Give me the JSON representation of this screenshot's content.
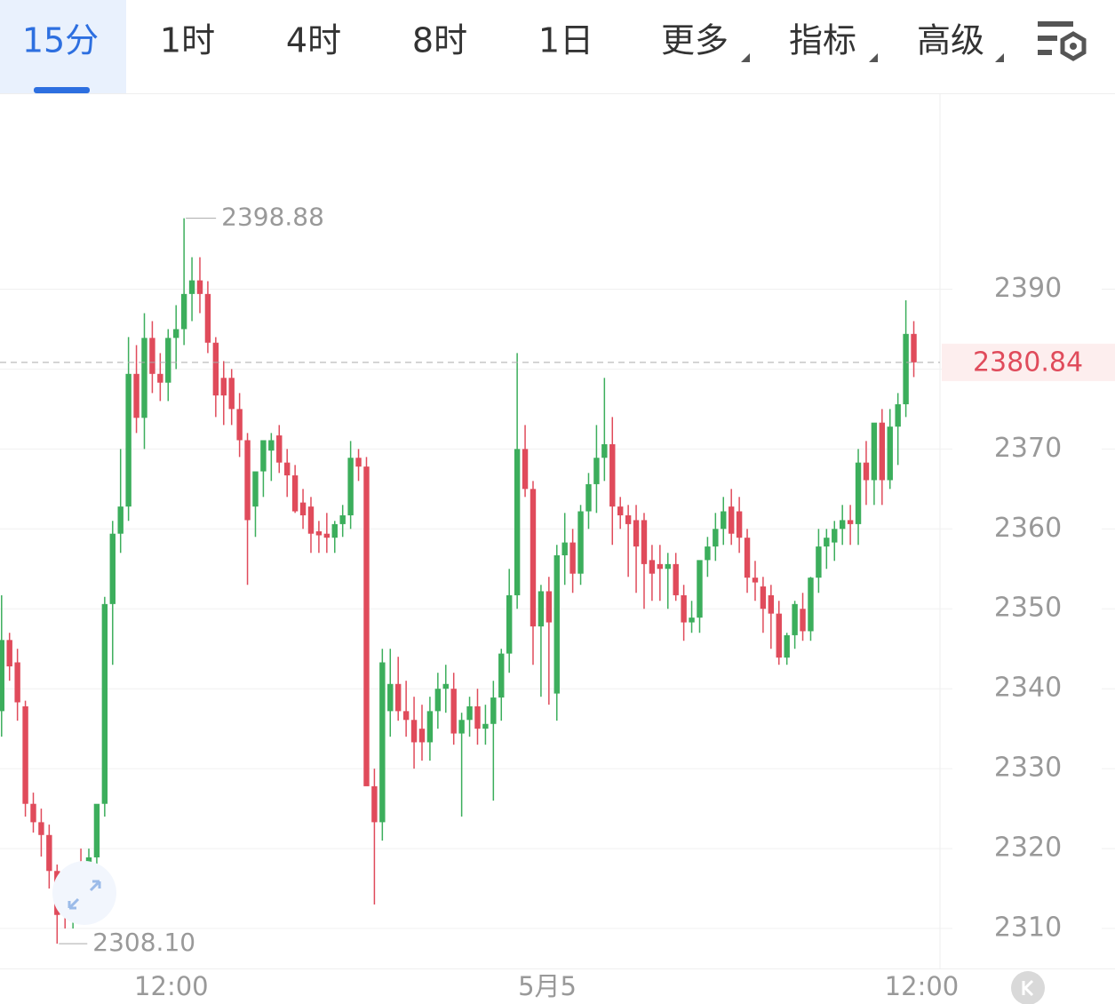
{
  "tabs": [
    "15分",
    "1时",
    "4时",
    "8时",
    "1日",
    "更多",
    "指标",
    "高级"
  ],
  "chart_data": {
    "type": "candlestick",
    "up_color": "#3cae5c",
    "down_color": "#e04b5b",
    "ylim": [
      2305,
      2414.4
    ],
    "yticks": [
      2310,
      2320,
      2330,
      2340,
      2350,
      2360,
      2370,
      2380,
      2390
    ],
    "xlim": [
      -0.2,
      118.3
    ],
    "xticks": [
      {
        "value": 21.4,
        "label": "12:00"
      },
      {
        "value": 68.8,
        "label": "5月5"
      },
      {
        "value": 116,
        "label": "12:00"
      }
    ],
    "grid": true,
    "last_price": 2380.84,
    "high_label": 2398.88,
    "low_label": {
      "value": 2308.1,
      "label": "2308.10"
    },
    "candles": [
      [
        2337.2,
        2351.7,
        2334,
        2346.1
      ],
      [
        2346.1,
        2347,
        2341,
        2342.8
      ],
      [
        2343.3,
        2345,
        2336,
        2338.3
      ],
      [
        2337.8,
        2338.5,
        2324,
        2325.6
      ],
      [
        2325.6,
        2327,
        2322,
        2323.3
      ],
      [
        2323.3,
        2325,
        2319,
        2321.7
      ],
      [
        2321.7,
        2323,
        2315,
        2317.2
      ],
      [
        2317.2,
        2318,
        2308.1,
        2311.7
      ],
      [
        2313.3,
        2315,
        2310,
        2312.2
      ],
      [
        2311.7,
        2318,
        2310,
        2317.8
      ],
      [
        2317.8,
        2320,
        2312,
        2316.1
      ],
      [
        2316.1,
        2320,
        2313,
        2318.9
      ],
      [
        2318.9,
        2325,
        2317,
        2325.6
      ],
      [
        2325.6,
        2351.5,
        2324,
        2350.6
      ],
      [
        2350.6,
        2361,
        2343,
        2359.4
      ],
      [
        2359.4,
        2370,
        2357,
        2362.8
      ],
      [
        2362.8,
        2384,
        2361,
        2379.4
      ],
      [
        2379.4,
        2383,
        2372,
        2373.9
      ],
      [
        2373.9,
        2387,
        2370,
        2383.9
      ],
      [
        2383.9,
        2386,
        2377,
        2379.4
      ],
      [
        2379.4,
        2382,
        2376,
        2378.3
      ],
      [
        2378.3,
        2385,
        2376,
        2383.9
      ],
      [
        2383.9,
        2388,
        2380,
        2385
      ],
      [
        2385,
        2398.88,
        2383,
        2389.4
      ],
      [
        2389.4,
        2394,
        2386,
        2391.1
      ],
      [
        2391.1,
        2394,
        2387,
        2389.4
      ],
      [
        2389.4,
        2391,
        2382,
        2383.3
      ],
      [
        2383.3,
        2384,
        2374,
        2376.7
      ],
      [
        2378.9,
        2381,
        2373,
        2376.7
      ],
      [
        2378.9,
        2380,
        2373,
        2375
      ],
      [
        2375,
        2377,
        2369,
        2371.1
      ],
      [
        2371.1,
        2372,
        2353,
        2361.1
      ],
      [
        2362.8,
        2367,
        2359,
        2367.2
      ],
      [
        2367.2,
        2371,
        2364,
        2371.1
      ],
      [
        2369.8,
        2372,
        2366,
        2371.1
      ],
      [
        2371.7,
        2373,
        2367,
        2368.3
      ],
      [
        2368.3,
        2370,
        2364,
        2366.7
      ],
      [
        2366.7,
        2368,
        2362,
        2362.2
      ],
      [
        2363.3,
        2365,
        2360,
        2361.7
      ],
      [
        2362.8,
        2364,
        2357,
        2359.4
      ],
      [
        2359.7,
        2361,
        2357,
        2359.2
      ],
      [
        2359.4,
        2362,
        2357,
        2358.9
      ],
      [
        2358.9,
        2361,
        2357,
        2360.6
      ],
      [
        2360.6,
        2363,
        2359,
        2361.7
      ],
      [
        2361.7,
        2371,
        2360,
        2368.9
      ],
      [
        2368.9,
        2370,
        2366,
        2367.8
      ],
      [
        2367.8,
        2369,
        2328,
        2327.8
      ],
      [
        2327.8,
        2330,
        2313,
        2323.3
      ],
      [
        2323.3,
        2345,
        2321,
        2343.3
      ],
      [
        2337.2,
        2345,
        2334,
        2340.6
      ],
      [
        2340.6,
        2344,
        2336,
        2337.2
      ],
      [
        2337.2,
        2341,
        2334,
        2336.1
      ],
      [
        2336.1,
        2339,
        2330,
        2333.3
      ],
      [
        2335,
        2338,
        2331,
        2333.3
      ],
      [
        2333.3,
        2339,
        2331,
        2337.2
      ],
      [
        2337.2,
        2342,
        2335,
        2340
      ],
      [
        2340,
        2343,
        2337,
        2340.6
      ],
      [
        2340,
        2342,
        2333,
        2334.4
      ],
      [
        2334.4,
        2337,
        2324,
        2336.1
      ],
      [
        2336.1,
        2339,
        2334,
        2337.8
      ],
      [
        2337.8,
        2340,
        2333,
        2335
      ],
      [
        2335,
        2338,
        2333,
        2335.6
      ],
      [
        2335.6,
        2341,
        2326,
        2338.9
      ],
      [
        2338.9,
        2345,
        2336,
        2344.4
      ],
      [
        2344.4,
        2355,
        2342,
        2351.7
      ],
      [
        2351.7,
        2382,
        2350,
        2370
      ],
      [
        2370,
        2373,
        2364,
        2365
      ],
      [
        2365,
        2366,
        2343,
        2347.8
      ],
      [
        2347.8,
        2353,
        2339,
        2352.2
      ],
      [
        2352.2,
        2354,
        2338,
        2348.3
      ],
      [
        2339.4,
        2358,
        2336,
        2356.7
      ],
      [
        2356.7,
        2362,
        2353,
        2358.3
      ],
      [
        2358.3,
        2360,
        2352,
        2354.4
      ],
      [
        2354.4,
        2363,
        2353,
        2362.2
      ],
      [
        2362.2,
        2367,
        2360,
        2365.6
      ],
      [
        2365.6,
        2373,
        2362,
        2368.9
      ],
      [
        2368.9,
        2378.9,
        2366,
        2370.6
      ],
      [
        2370.6,
        2374,
        2358,
        2362.8
      ],
      [
        2362.8,
        2364,
        2360,
        2361.7
      ],
      [
        2361.7,
        2363,
        2354,
        2360.6
      ],
      [
        2361.1,
        2363,
        2352,
        2357.8
      ],
      [
        2361.1,
        2362,
        2350,
        2355.6
      ],
      [
        2356.1,
        2358,
        2351,
        2354.4
      ],
      [
        2355.6,
        2358,
        2351,
        2355
      ],
      [
        2355,
        2357,
        2350,
        2355.6
      ],
      [
        2355.6,
        2357,
        2351,
        2351.7
      ],
      [
        2351.7,
        2353,
        2346,
        2348.3
      ],
      [
        2348.3,
        2351,
        2347,
        2348.9
      ],
      [
        2348.9,
        2356,
        2347,
        2356.1
      ],
      [
        2356.1,
        2359,
        2354,
        2357.8
      ],
      [
        2357.8,
        2362,
        2356,
        2360
      ],
      [
        2360,
        2364,
        2358,
        2362.2
      ],
      [
        2362.8,
        2365,
        2358,
        2359.4
      ],
      [
        2362.2,
        2364,
        2357,
        2358.9
      ],
      [
        2358.9,
        2360,
        2352,
        2353.9
      ],
      [
        2353.9,
        2356,
        2351,
        2353.3
      ],
      [
        2352.8,
        2354,
        2347,
        2350
      ],
      [
        2351.7,
        2353,
        2345,
        2349.4
      ],
      [
        2349.4,
        2351,
        2343,
        2343.9
      ],
      [
        2343.9,
        2347,
        2343,
        2346.7
      ],
      [
        2346.7,
        2351,
        2345,
        2350.6
      ],
      [
        2350,
        2352,
        2346,
        2347.2
      ],
      [
        2347.2,
        2354,
        2346,
        2353.9
      ],
      [
        2353.9,
        2360,
        2352,
        2357.8
      ],
      [
        2357.8,
        2360,
        2355,
        2358.9
      ],
      [
        2358.3,
        2361,
        2356,
        2360
      ],
      [
        2360,
        2363,
        2358,
        2361.1
      ],
      [
        2361.1,
        2363,
        2358,
        2360.6
      ],
      [
        2360.6,
        2370,
        2358,
        2368.3
      ],
      [
        2368.3,
        2371,
        2363,
        2366.1
      ],
      [
        2366.1,
        2373,
        2363,
        2373.3
      ],
      [
        2373.3,
        2375,
        2363,
        2366.1
      ],
      [
        2366.1,
        2375,
        2365,
        2372.8
      ],
      [
        2372.8,
        2377,
        2368,
        2375.6
      ],
      [
        2375.6,
        2388.6,
        2374,
        2384.4
      ],
      [
        2384.4,
        2386,
        2379,
        2380.84
      ]
    ]
  }
}
